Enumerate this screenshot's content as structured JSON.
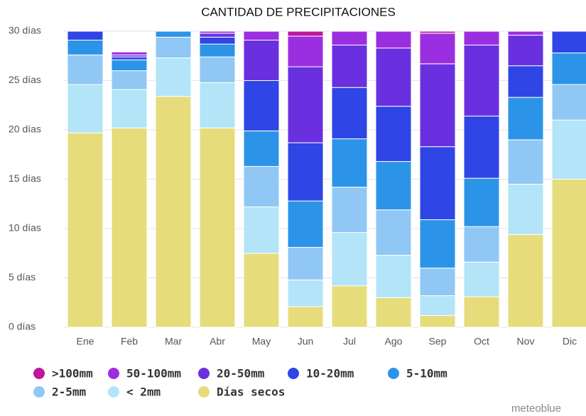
{
  "chart_data": {
    "type": "stacked_bar",
    "title": "CANTIDAD DE PRECIPITACIONES",
    "credit": "meteoblue",
    "categories": [
      "Ene",
      "Feb",
      "Mar",
      "Abr",
      "May",
      "Jun",
      "Jul",
      "Ago",
      "Sep",
      "Oct",
      "Nov",
      "Dic"
    ],
    "series": [
      {
        "name": ">100mm",
        "color": "#c0169c",
        "values": [
          0,
          0,
          0,
          0,
          0,
          0.5,
          0,
          0,
          0.2,
          0,
          0,
          0
        ]
      },
      {
        "name": "50-100mm",
        "color": "#9b2ee0",
        "values": [
          0,
          0.3,
          0,
          0.2,
          0.9,
          3.1,
          1.4,
          1.7,
          3.1,
          1.4,
          0.4,
          0
        ]
      },
      {
        "name": "20-50mm",
        "color": "#6a30e0",
        "values": [
          0,
          0.2,
          0,
          0.4,
          4.1,
          7.7,
          4.3,
          5.9,
          8.4,
          7.2,
          3.1,
          0
        ]
      },
      {
        "name": "10-20mm",
        "color": "#2f45e6",
        "values": [
          0.9,
          0.3,
          0,
          0.7,
          5.1,
          5.9,
          5.2,
          5.6,
          7.4,
          6.3,
          3.2,
          2.2
        ]
      },
      {
        "name": "5-10mm",
        "color": "#2c94e8",
        "values": [
          1.5,
          1.1,
          0.6,
          1.3,
          3.6,
          4.7,
          4.9,
          4.9,
          4.9,
          4.9,
          4.3,
          3.2
        ]
      },
      {
        "name": "2-5mm",
        "color": "#90c7f4",
        "values": [
          3.0,
          1.9,
          2.1,
          2.6,
          4.1,
          3.3,
          4.6,
          4.6,
          2.8,
          3.6,
          4.5,
          3.6
        ]
      },
      {
        "name": "< 2mm",
        "color": "#b3e4f8",
        "values": [
          4.9,
          3.9,
          3.9,
          4.6,
          4.7,
          2.7,
          5.4,
          4.3,
          2.0,
          3.5,
          5.1,
          6.0
        ]
      },
      {
        "name": "Días secos",
        "color": "#e6dc7c",
        "values": [
          19.7,
          20.2,
          23.4,
          20.2,
          7.5,
          2.1,
          4.2,
          3.0,
          1.2,
          3.1,
          9.4,
          15.0
        ]
      }
    ],
    "ylim": [
      0,
      30
    ],
    "yticks": [
      {
        "value": 0,
        "label": "0 días"
      },
      {
        "value": 5,
        "label": "5 días"
      },
      {
        "value": 10,
        "label": "10 días"
      },
      {
        "value": 15,
        "label": "15 días"
      },
      {
        "value": 20,
        "label": "20 días"
      },
      {
        "value": 25,
        "label": "25 días"
      },
      {
        "value": 30,
        "label": "30 días"
      }
    ],
    "grid": true
  }
}
